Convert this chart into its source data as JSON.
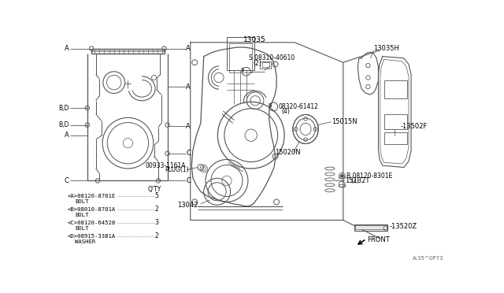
{
  "bg_color": "#ffffff",
  "line_color": "#555555",
  "text_color": "#000000",
  "fig_width": 6.4,
  "fig_height": 3.72,
  "bom_items": [
    {
      "label": "<A>08120-8701E",
      "qty": "5",
      "sub": "BOLT"
    },
    {
      "label": "<B>08010-8701A",
      "qty": "2",
      "sub": "BOLT"
    },
    {
      "label": "<C>08120-64528",
      "qty": "3",
      "sub": "BOLT"
    },
    {
      "label": "<D>08915-3381A",
      "qty": "2",
      "sub": "WASHER"
    }
  ]
}
